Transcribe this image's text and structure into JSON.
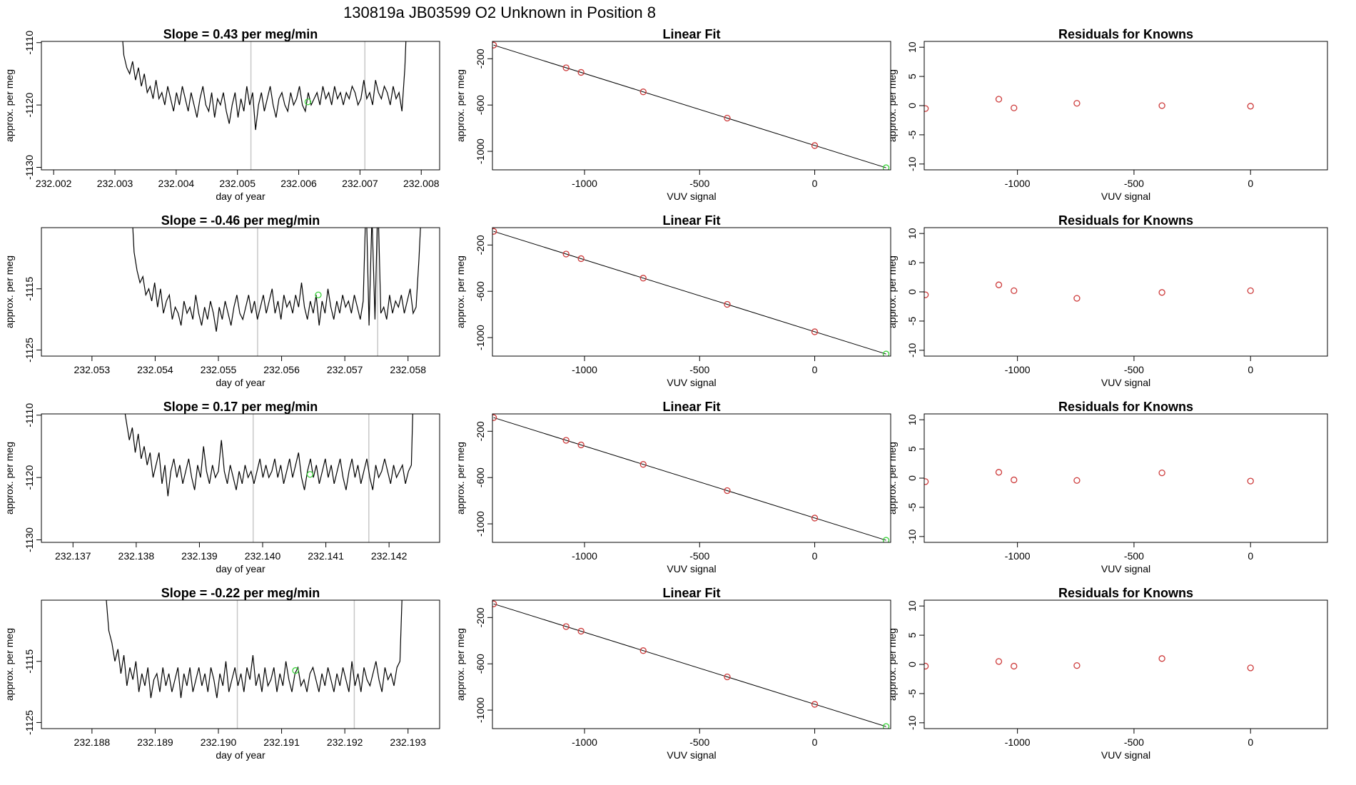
{
  "header": {
    "title": "130819a      JB03599    O2 Unknown in Position  8"
  },
  "colors": {
    "line": "#000000",
    "known": "#cd3b3b",
    "unknown": "#3cd33c",
    "guide": "#c8c8c8",
    "frame": "#000000"
  },
  "chart_data": [
    {
      "type": "line",
      "row": 0,
      "col": 0,
      "title": "Slope =  0.43  per meg/min",
      "xlabel": "day of year",
      "ylabel": "approx. per meg",
      "xlim": [
        232.0018,
        232.0083
      ],
      "ylim": [
        -1130.4,
        -1109.8
      ],
      "xticks": [
        232.002,
        232.003,
        232.004,
        232.005,
        232.006,
        232.007,
        232.008
      ],
      "xtick_labels": [
        "232.002",
        "232.003",
        "232.004",
        "232.005",
        "232.006",
        "232.007",
        "232.008"
      ],
      "yticks": [
        -1130,
        -1120,
        -1110
      ],
      "ytick_labels": [
        "-1130",
        "-1120",
        "-1110"
      ],
      "guides": [
        232.00522,
        232.00708
      ],
      "x_start": 232.00305,
      "x_end": 232.00778,
      "y": [
        -1100,
        -1106,
        -1112,
        -1114,
        -1115,
        -1113,
        -1116,
        -1114,
        -1117,
        -1115,
        -1118,
        -1117,
        -1119,
        -1116,
        -1119,
        -1118,
        -1120,
        -1117,
        -1119,
        -1121,
        -1118,
        -1120,
        -1117,
        -1119,
        -1121,
        -1118,
        -1120,
        -1122,
        -1119,
        -1117,
        -1120,
        -1121,
        -1118,
        -1122,
        -1119,
        -1120,
        -1118,
        -1121,
        -1123,
        -1120,
        -1118,
        -1122,
        -1119,
        -1121,
        -1117,
        -1120,
        -1118,
        -1124,
        -1120,
        -1118,
        -1121,
        -1119,
        -1117,
        -1120,
        -1122,
        -1119,
        -1118,
        -1120,
        -1121,
        -1118,
        -1120,
        -1119,
        -1117,
        -1120,
        -1121,
        -1118,
        -1120,
        -1119,
        -1118,
        -1120,
        -1117,
        -1119,
        -1118,
        -1120,
        -1117,
        -1119,
        -1118,
        -1120,
        -1118,
        -1119,
        -1117,
        -1118,
        -1120,
        -1119,
        -1116,
        -1119,
        -1118,
        -1120,
        -1116,
        -1118,
        -1119,
        -1117,
        -1118,
        -1120,
        -1117,
        -1119,
        -1118,
        -1121,
        -1114,
        -1102
      ],
      "marker": {
        "x": 232.00615,
        "y": -1119.5
      }
    },
    {
      "type": "scatter",
      "row": 0,
      "col": 1,
      "title": "Linear Fit",
      "xlabel": "VUV signal",
      "ylabel": "approx. per meg",
      "xlim": [
        -1400,
        330
      ],
      "ylim": [
        -1160,
        -50
      ],
      "xticks": [
        -1000,
        -500,
        0
      ],
      "xtick_labels": [
        "-1000",
        "-500",
        "0"
      ],
      "yticks": [
        -1000,
        -600,
        -200
      ],
      "ytick_labels": [
        "-1000",
        "-600",
        "-200"
      ],
      "fit_line": {
        "x": [
          -1395,
          310
        ],
        "y": [
          -82,
          -1142
        ]
      },
      "points": [
        {
          "x": -1395,
          "y": -82
        },
        {
          "x": -1080,
          "y": -278
        },
        {
          "x": -1015,
          "y": -318
        },
        {
          "x": -745,
          "y": -486
        },
        {
          "x": -380,
          "y": -713
        },
        {
          "x": 0,
          "y": -950
        }
      ],
      "unknown_point": {
        "x": 310,
        "y": -1142
      }
    },
    {
      "type": "scatter",
      "row": 0,
      "col": 2,
      "title": "Residuals for Knowns",
      "xlabel": "VUV signal",
      "ylabel": "approx. per meg",
      "xlim": [
        -1400,
        330
      ],
      "ylim": [
        -11,
        11
      ],
      "xticks": [
        -1000,
        -500,
        0
      ],
      "xtick_labels": [
        "-1000",
        "-500",
        "0"
      ],
      "yticks": [
        -10,
        -5,
        0,
        5,
        10
      ],
      "ytick_labels": [
        "-10",
        "-5",
        "0",
        "5",
        "10"
      ],
      "points": [
        {
          "x": -1395,
          "y": -0.5
        },
        {
          "x": -1080,
          "y": 1.1
        },
        {
          "x": -1015,
          "y": -0.4
        },
        {
          "x": -745,
          "y": 0.4
        },
        {
          "x": -380,
          "y": 0.0
        },
        {
          "x": 0,
          "y": -0.1
        }
      ]
    },
    {
      "type": "line",
      "row": 1,
      "col": 0,
      "title": "Slope =  -0.46  per meg/min",
      "xlabel": "day of year",
      "ylabel": "approx. per meg",
      "xlim": [
        232.0522,
        232.0585
      ],
      "ylim": [
        -1126,
        -1105
      ],
      "xticks": [
        232.053,
        232.054,
        232.055,
        232.056,
        232.057,
        232.058
      ],
      "xtick_labels": [
        "232.053",
        "232.054",
        "232.055",
        "232.056",
        "232.057",
        "232.058"
      ],
      "yticks": [
        -1125,
        -1115
      ],
      "ytick_labels": [
        "-1125",
        "-1115"
      ],
      "guides": [
        232.05562,
        232.05752
      ],
      "x_start": 232.05362,
      "x_end": 232.05822,
      "y": [
        -1100,
        -1109,
        -1112,
        -1114,
        -1113,
        -1116,
        -1115,
        -1117,
        -1114,
        -1118,
        -1115,
        -1119,
        -1117,
        -1116,
        -1120,
        -1118,
        -1119,
        -1121,
        -1117,
        -1119,
        -1118,
        -1120,
        -1116,
        -1119,
        -1121,
        -1118,
        -1120,
        -1117,
        -1119,
        -1122,
        -1118,
        -1120,
        -1117,
        -1119,
        -1121,
        -1118,
        -1116,
        -1119,
        -1120,
        -1118,
        -1116,
        -1119,
        -1117,
        -1120,
        -1118,
        -1116,
        -1119,
        -1117,
        -1115,
        -1119,
        -1117,
        -1120,
        -1116,
        -1118,
        -1117,
        -1119,
        -1116,
        -1118,
        -1114,
        -1118,
        -1120,
        -1117,
        -1119,
        -1116,
        -1121,
        -1117,
        -1119,
        -1115,
        -1118,
        -1120,
        -1117,
        -1119,
        -1116,
        -1118,
        -1117,
        -1119,
        -1116,
        -1118,
        -1120,
        -1117,
        -1100,
        -1121,
        -1103,
        -1120,
        -1100,
        -1119,
        -1118,
        -1120,
        -1116,
        -1119,
        -1117,
        -1118,
        -1116,
        -1119,
        -1117,
        -1115,
        -1119,
        -1118,
        -1110,
        -1100
      ],
      "marker": {
        "x": 232.05658,
        "y": -1116.0
      }
    },
    {
      "type": "scatter",
      "row": 1,
      "col": 1,
      "title": "Linear Fit",
      "xlabel": "VUV signal",
      "ylabel": "approx. per meg",
      "xlim": [
        -1400,
        330
      ],
      "ylim": [
        -1160,
        -50
      ],
      "xticks": [
        -1000,
        -500,
        0
      ],
      "xtick_labels": [
        "-1000",
        "-500",
        "0"
      ],
      "yticks": [
        -1000,
        -600,
        -200
      ],
      "ytick_labels": [
        "-1000",
        "-600",
        "-200"
      ],
      "fit_line": {
        "x": [
          -1395,
          310
        ],
        "y": [
          -82,
          -1142
        ]
      },
      "points": [
        {
          "x": -1395,
          "y": -82
        },
        {
          "x": -1080,
          "y": -278
        },
        {
          "x": -1015,
          "y": -318
        },
        {
          "x": -745,
          "y": -486
        },
        {
          "x": -380,
          "y": -713
        },
        {
          "x": 0,
          "y": -950
        }
      ],
      "unknown_point": {
        "x": 310,
        "y": -1142
      }
    },
    {
      "type": "scatter",
      "row": 1,
      "col": 2,
      "title": "Residuals for Knowns",
      "xlabel": "VUV signal",
      "ylabel": "approx. per meg",
      "xlim": [
        -1400,
        330
      ],
      "ylim": [
        -11,
        11
      ],
      "xticks": [
        -1000,
        -500,
        0
      ],
      "xtick_labels": [
        "-1000",
        "-500",
        "0"
      ],
      "yticks": [
        -10,
        -5,
        0,
        5,
        10
      ],
      "ytick_labels": [
        "-10",
        "-5",
        "0",
        "5",
        "10"
      ],
      "points": [
        {
          "x": -1395,
          "y": -0.5
        },
        {
          "x": -1080,
          "y": 1.2
        },
        {
          "x": -1015,
          "y": 0.2
        },
        {
          "x": -745,
          "y": -1.1
        },
        {
          "x": -380,
          "y": -0.1
        },
        {
          "x": 0,
          "y": 0.2
        }
      ]
    },
    {
      "type": "line",
      "row": 2,
      "col": 0,
      "title": "Slope =  0.17  per meg/min",
      "xlabel": "day of year",
      "ylabel": "approx. per meg",
      "xlim": [
        232.1365,
        232.1428
      ],
      "ylim": [
        -1130.4,
        -1109.8
      ],
      "xticks": [
        232.137,
        232.138,
        232.139,
        232.14,
        232.141,
        232.142
      ],
      "xtick_labels": [
        "232.137",
        "232.138",
        "232.139",
        "232.140",
        "232.141",
        "232.142"
      ],
      "yticks": [
        -1130,
        -1120,
        -1110
      ],
      "ytick_labels": [
        "-1130",
        "-1120",
        "-1110"
      ],
      "guides": [
        232.13985,
        232.14168
      ],
      "x_start": 232.13775,
      "x_end": 232.1424,
      "y": [
        -1100,
        -1108,
        -1111,
        -1114,
        -1112,
        -1116,
        -1113,
        -1117,
        -1115,
        -1118,
        -1116,
        -1120,
        -1118,
        -1116,
        -1121,
        -1118,
        -1123,
        -1119,
        -1117,
        -1120,
        -1118,
        -1121,
        -1119,
        -1117,
        -1120,
        -1122,
        -1118,
        -1120,
        -1115,
        -1119,
        -1121,
        -1118,
        -1120,
        -1119,
        -1114,
        -1119,
        -1121,
        -1118,
        -1120,
        -1122,
        -1119,
        -1121,
        -1118,
        -1120,
        -1119,
        -1121,
        -1119,
        -1117,
        -1120,
        -1118,
        -1120,
        -1119,
        -1117,
        -1120,
        -1118,
        -1121,
        -1119,
        -1117,
        -1120,
        -1118,
        -1116,
        -1120,
        -1122,
        -1119,
        -1117,
        -1120,
        -1118,
        -1121,
        -1119,
        -1117,
        -1120,
        -1118,
        -1121,
        -1119,
        -1117,
        -1120,
        -1122,
        -1119,
        -1117,
        -1120,
        -1118,
        -1121,
        -1119,
        -1117,
        -1120,
        -1122,
        -1118,
        -1120,
        -1119,
        -1117,
        -1119,
        -1121,
        -1118,
        -1120,
        -1119,
        -1118,
        -1121,
        -1119,
        -1118,
        -1100
      ],
      "marker": {
        "x": 232.14075,
        "y": -1119.5
      }
    },
    {
      "type": "scatter",
      "row": 2,
      "col": 1,
      "title": "Linear Fit",
      "xlabel": "VUV signal",
      "ylabel": "approx. per meg",
      "xlim": [
        -1400,
        330
      ],
      "ylim": [
        -1160,
        -50
      ],
      "xticks": [
        -1000,
        -500,
        0
      ],
      "xtick_labels": [
        "-1000",
        "-500",
        "0"
      ],
      "yticks": [
        -1000,
        -600,
        -200
      ],
      "ytick_labels": [
        "-1000",
        "-600",
        "-200"
      ],
      "fit_line": {
        "x": [
          -1395,
          310
        ],
        "y": [
          -82,
          -1142
        ]
      },
      "points": [
        {
          "x": -1395,
          "y": -82
        },
        {
          "x": -1080,
          "y": -278
        },
        {
          "x": -1015,
          "y": -318
        },
        {
          "x": -745,
          "y": -486
        },
        {
          "x": -380,
          "y": -713
        },
        {
          "x": 0,
          "y": -950
        }
      ],
      "unknown_point": {
        "x": 310,
        "y": -1142
      }
    },
    {
      "type": "scatter",
      "row": 2,
      "col": 2,
      "title": "Residuals for Knowns",
      "xlabel": "VUV signal",
      "ylabel": "approx. per meg",
      "xlim": [
        -1400,
        330
      ],
      "ylim": [
        -11,
        11
      ],
      "xticks": [
        -1000,
        -500,
        0
      ],
      "xtick_labels": [
        "-1000",
        "-500",
        "0"
      ],
      "yticks": [
        -10,
        -5,
        0,
        5,
        10
      ],
      "ytick_labels": [
        "-10",
        "-5",
        "0",
        "5",
        "10"
      ],
      "points": [
        {
          "x": -1395,
          "y": -0.6
        },
        {
          "x": -1080,
          "y": 1.0
        },
        {
          "x": -1015,
          "y": -0.3
        },
        {
          "x": -745,
          "y": -0.4
        },
        {
          "x": -380,
          "y": 0.9
        },
        {
          "x": 0,
          "y": -0.5
        }
      ]
    },
    {
      "type": "line",
      "row": 3,
      "col": 0,
      "title": "Slope =  -0.22  per meg/min",
      "xlabel": "day of year",
      "ylabel": "approx. per meg",
      "xlim": [
        232.1872,
        232.1935
      ],
      "ylim": [
        -1126,
        -1105
      ],
      "xticks": [
        232.188,
        232.189,
        232.19,
        232.191,
        232.192,
        232.193
      ],
      "xtick_labels": [
        "232.188",
        "232.189",
        "232.190",
        "232.191",
        "232.192",
        "232.193"
      ],
      "yticks": [
        -1125,
        -1115
      ],
      "ytick_labels": [
        "-1125",
        "-1115"
      ],
      "guides": [
        232.1903,
        232.19215
      ],
      "x_start": 232.18822,
      "x_end": 232.19292,
      "y": [
        -1104,
        -1110,
        -1112,
        -1115,
        -1113,
        -1117,
        -1114,
        -1119,
        -1116,
        -1118,
        -1115,
        -1120,
        -1117,
        -1119,
        -1116,
        -1121,
        -1118,
        -1117,
        -1120,
        -1116,
        -1119,
        -1117,
        -1120,
        -1118,
        -1116,
        -1121,
        -1117,
        -1119,
        -1116,
        -1120,
        -1118,
        -1116,
        -1119,
        -1117,
        -1120,
        -1116,
        -1118,
        -1121,
        -1117,
        -1119,
        -1115,
        -1120,
        -1118,
        -1116,
        -1119,
        -1117,
        -1120,
        -1116,
        -1118,
        -1114,
        -1119,
        -1117,
        -1120,
        -1116,
        -1119,
        -1118,
        -1116,
        -1120,
        -1117,
        -1119,
        -1115,
        -1118,
        -1120,
        -1117,
        -1116,
        -1119,
        -1118,
        -1120,
        -1117,
        -1116,
        -1118,
        -1120,
        -1117,
        -1119,
        -1116,
        -1118,
        -1120,
        -1117,
        -1119,
        -1116,
        -1118,
        -1120,
        -1115,
        -1119,
        -1117,
        -1120,
        -1116,
        -1118,
        -1119,
        -1117,
        -1115,
        -1118,
        -1120,
        -1116,
        -1118,
        -1117,
        -1119,
        -1116,
        -1115,
        -1100
      ],
      "marker": {
        "x": 232.19122,
        "y": -1116.5
      }
    },
    {
      "type": "scatter",
      "row": 3,
      "col": 1,
      "title": "Linear Fit",
      "xlabel": "VUV signal",
      "ylabel": "approx. per meg",
      "xlim": [
        -1400,
        330
      ],
      "ylim": [
        -1160,
        -50
      ],
      "xticks": [
        -1000,
        -500,
        0
      ],
      "xtick_labels": [
        "-1000",
        "-500",
        "0"
      ],
      "yticks": [
        -1000,
        -600,
        -200
      ],
      "ytick_labels": [
        "-1000",
        "-600",
        "-200"
      ],
      "fit_line": {
        "x": [
          -1395,
          310
        ],
        "y": [
          -82,
          -1142
        ]
      },
      "points": [
        {
          "x": -1395,
          "y": -82
        },
        {
          "x": -1080,
          "y": -278
        },
        {
          "x": -1015,
          "y": -318
        },
        {
          "x": -745,
          "y": -486
        },
        {
          "x": -380,
          "y": -713
        },
        {
          "x": 0,
          "y": -950
        }
      ],
      "unknown_point": {
        "x": 310,
        "y": -1142
      }
    },
    {
      "type": "scatter",
      "row": 3,
      "col": 2,
      "title": "Residuals for Knowns",
      "xlabel": "VUV signal",
      "ylabel": "approx. per meg",
      "xlim": [
        -1400,
        330
      ],
      "ylim": [
        -11,
        11
      ],
      "xticks": [
        -1000,
        -500,
        0
      ],
      "xtick_labels": [
        "-1000",
        "-500",
        "0"
      ],
      "yticks": [
        -10,
        -5,
        0,
        5,
        10
      ],
      "ytick_labels": [
        "-10",
        "-5",
        "0",
        "5",
        "10"
      ],
      "points": [
        {
          "x": -1395,
          "y": -0.3
        },
        {
          "x": -1080,
          "y": 0.5
        },
        {
          "x": -1015,
          "y": -0.3
        },
        {
          "x": -745,
          "y": -0.2
        },
        {
          "x": -380,
          "y": 1.0
        },
        {
          "x": 0,
          "y": -0.6
        }
      ]
    }
  ]
}
